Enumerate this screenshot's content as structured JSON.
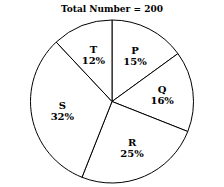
{
  "chart_data": {
    "type": "pie",
    "title": "Total Number = 200",
    "categories": [
      "P",
      "Q",
      "R",
      "S",
      "T"
    ],
    "values": [
      15,
      16,
      25,
      32,
      12
    ],
    "value_labels": [
      "15%",
      "16%",
      "25%",
      "32%",
      "12%"
    ],
    "colors": [
      "white",
      "white",
      "white",
      "white",
      "white"
    ]
  }
}
